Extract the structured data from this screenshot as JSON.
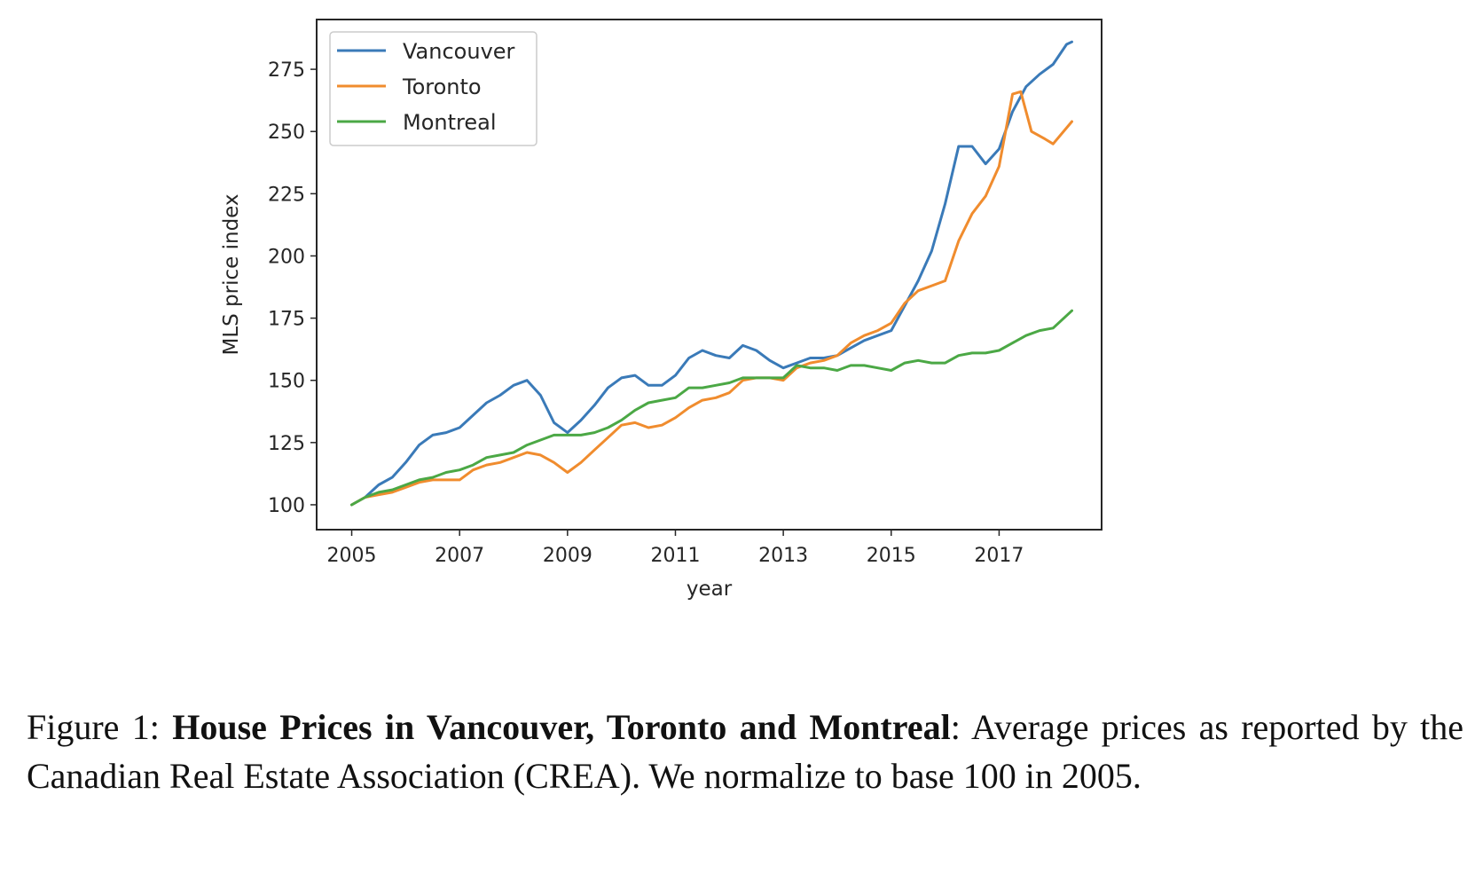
{
  "colors": {
    "vancouver": "#3a7ab8",
    "toronto": "#f08c2e",
    "montreal": "#4ba845",
    "axes": "#262626"
  },
  "caption": {
    "label": "Figure 1:",
    "title": "House Prices in Vancouver, Toronto and Montreal",
    "text": ":  Average prices as reported by the Canadian Real Estate Association (CREA). We normalize to base 100 in 2005."
  },
  "chart_data": {
    "type": "line",
    "title": "",
    "xlabel": "year",
    "ylabel": "MLS price index",
    "xlim": [
      2004.35,
      2018.9
    ],
    "ylim": [
      90,
      295
    ],
    "xticks": [
      2005,
      2007,
      2009,
      2011,
      2013,
      2015,
      2017
    ],
    "yticks": [
      100,
      125,
      150,
      175,
      200,
      225,
      250,
      275
    ],
    "grid": false,
    "legend_position": "top-left",
    "series": [
      {
        "name": "Vancouver",
        "color": "#3a7ab8",
        "x": [
          2005.0,
          2005.25,
          2005.5,
          2005.75,
          2006.0,
          2006.25,
          2006.5,
          2006.75,
          2007.0,
          2007.25,
          2007.5,
          2007.75,
          2008.0,
          2008.25,
          2008.5,
          2008.75,
          2009.0,
          2009.25,
          2009.5,
          2009.75,
          2010.0,
          2010.25,
          2010.5,
          2010.75,
          2011.0,
          2011.25,
          2011.5,
          2011.75,
          2012.0,
          2012.25,
          2012.5,
          2012.75,
          2013.0,
          2013.25,
          2013.5,
          2013.75,
          2014.0,
          2014.25,
          2014.5,
          2014.75,
          2015.0,
          2015.25,
          2015.5,
          2015.75,
          2016.0,
          2016.25,
          2016.5,
          2016.75,
          2017.0,
          2017.25,
          2017.5,
          2017.75,
          2018.0,
          2018.25,
          2018.35
        ],
        "y": [
          100,
          103,
          108,
          111,
          117,
          124,
          128,
          129,
          131,
          136,
          141,
          144,
          148,
          150,
          144,
          133,
          129,
          134,
          140,
          147,
          151,
          152,
          148,
          148,
          152,
          159,
          162,
          160,
          159,
          164,
          162,
          158,
          155,
          157,
          159,
          159,
          160,
          163,
          166,
          168,
          170,
          180,
          190,
          202,
          221,
          244,
          244,
          237,
          243,
          258,
          268,
          273,
          277,
          285,
          286
        ]
      },
      {
        "name": "Toronto",
        "color": "#f08c2e",
        "x": [
          2005.0,
          2005.25,
          2005.5,
          2005.75,
          2006.0,
          2006.25,
          2006.5,
          2006.75,
          2007.0,
          2007.25,
          2007.5,
          2007.75,
          2008.0,
          2008.25,
          2008.5,
          2008.75,
          2009.0,
          2009.25,
          2009.5,
          2009.75,
          2010.0,
          2010.25,
          2010.5,
          2010.75,
          2011.0,
          2011.25,
          2011.5,
          2011.75,
          2012.0,
          2012.25,
          2012.5,
          2012.75,
          2013.0,
          2013.25,
          2013.5,
          2013.75,
          2014.0,
          2014.25,
          2014.5,
          2014.75,
          2015.0,
          2015.25,
          2015.5,
          2015.75,
          2016.0,
          2016.25,
          2016.5,
          2016.75,
          2017.0,
          2017.25,
          2017.4,
          2017.6,
          2017.85,
          2018.0,
          2018.35
        ],
        "y": [
          100,
          103,
          104,
          105,
          107,
          109,
          110,
          110,
          110,
          114,
          116,
          117,
          119,
          121,
          120,
          117,
          113,
          117,
          122,
          127,
          132,
          133,
          131,
          132,
          135,
          139,
          142,
          143,
          145,
          150,
          151,
          151,
          150,
          155,
          157,
          158,
          160,
          165,
          168,
          170,
          173,
          181,
          186,
          188,
          190,
          206,
          217,
          224,
          236,
          265,
          266,
          250,
          247,
          245,
          254
        ]
      },
      {
        "name": "Montreal",
        "color": "#4ba845",
        "x": [
          2005.0,
          2005.25,
          2005.5,
          2005.75,
          2006.0,
          2006.25,
          2006.5,
          2006.75,
          2007.0,
          2007.25,
          2007.5,
          2007.75,
          2008.0,
          2008.25,
          2008.5,
          2008.75,
          2009.0,
          2009.25,
          2009.5,
          2009.75,
          2010.0,
          2010.25,
          2010.5,
          2010.75,
          2011.0,
          2011.25,
          2011.5,
          2011.75,
          2012.0,
          2012.25,
          2012.5,
          2012.75,
          2013.0,
          2013.25,
          2013.5,
          2013.75,
          2014.0,
          2014.25,
          2014.5,
          2014.75,
          2015.0,
          2015.25,
          2015.5,
          2015.75,
          2016.0,
          2016.25,
          2016.5,
          2016.75,
          2017.0,
          2017.25,
          2017.5,
          2017.75,
          2018.0,
          2018.35
        ],
        "y": [
          100,
          103,
          105,
          106,
          108,
          110,
          111,
          113,
          114,
          116,
          119,
          120,
          121,
          124,
          126,
          128,
          128,
          128,
          129,
          131,
          134,
          138,
          141,
          142,
          143,
          147,
          147,
          148,
          149,
          151,
          151,
          151,
          151,
          156,
          155,
          155,
          154,
          156,
          156,
          155,
          154,
          157,
          158,
          157,
          157,
          160,
          161,
          161,
          162,
          165,
          168,
          170,
          171,
          178
        ]
      }
    ]
  }
}
